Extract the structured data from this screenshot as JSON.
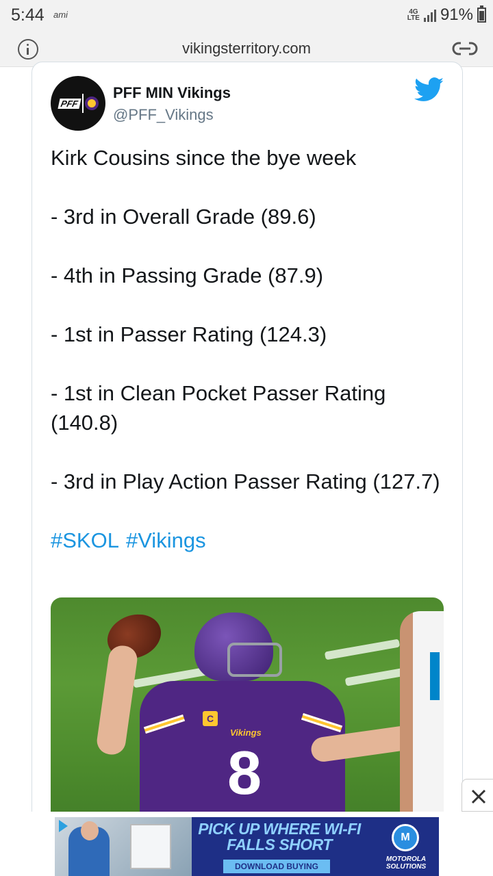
{
  "status_bar": {
    "time": "5:44",
    "carrier": "ami",
    "network_top": "4G",
    "network_bottom": "LTE",
    "battery": "91%"
  },
  "browser": {
    "url": "vikingsterritory.com",
    "icons": [
      "info-icon",
      "link-icon"
    ]
  },
  "tweet": {
    "author_name": "PFF MIN Vikings",
    "author_handle": "@PFF_Vikings",
    "avatar_text": "PFF",
    "lines": [
      "Kirk Cousins since the bye week",
      "- 3rd in Overall Grade (89.6)",
      "- 4th in Passing Grade (87.9)",
      "- 1st in Passer Rating (124.3)",
      "- 1st in Clean Pocket Passer Rating (140.8)",
      "- 3rd in Play Action Passer Rating (127.7)"
    ],
    "hashtags": [
      "#SKOL",
      "#Vikings"
    ],
    "photo": {
      "jersey_number": "8",
      "jersey_text": "Vikings",
      "captain_patch": "C"
    },
    "colors": {
      "link": "#1b95e0",
      "twitter_blue": "#1da1f2",
      "vikings_purple": "#4f2683",
      "vikings_gold": "#ffc62f"
    }
  },
  "ad": {
    "headline": "PICK UP WHERE WI-FI FALLS SHORT",
    "cta": "DOWNLOAD BUYING GUIDE",
    "brand_line1": "MOTOROLA",
    "brand_line2": "SOLUTIONS"
  }
}
